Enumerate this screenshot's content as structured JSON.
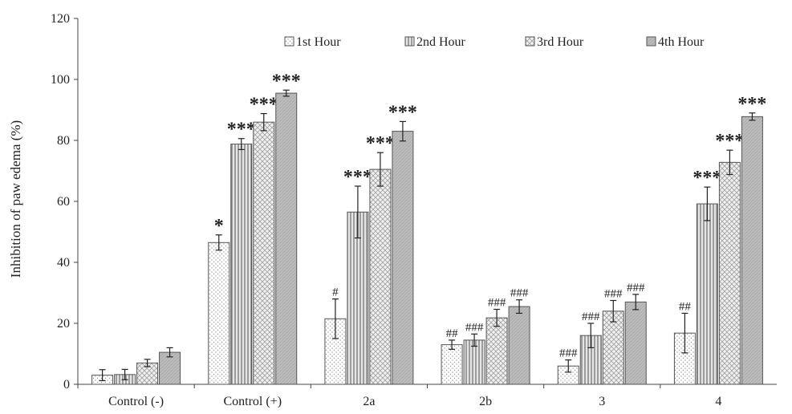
{
  "chart_data": {
    "type": "bar",
    "title": "",
    "xlabel": "",
    "ylabel": "Inhibition of paw edema (%)",
    "ylim": [
      0,
      120
    ],
    "yticks": [
      0,
      20,
      40,
      60,
      80,
      100,
      120
    ],
    "grid": false,
    "legend_position": "top",
    "categories": [
      "Control (-)",
      "Control (+)",
      "2a",
      "2b",
      "3",
      "4"
    ],
    "series": [
      {
        "name": "1st Hour",
        "values": [
          3.0,
          46.5,
          21.5,
          13.0,
          6.0,
          16.8
        ],
        "errors": [
          1.8,
          2.5,
          6.5,
          1.5,
          2.0,
          6.5
        ],
        "annotations": [
          "",
          "*",
          "#",
          "##",
          "###",
          "##"
        ]
      },
      {
        "name": "2nd Hour",
        "values": [
          3.2,
          78.8,
          56.5,
          14.5,
          16.0,
          59.2
        ],
        "errors": [
          1.7,
          1.8,
          8.5,
          2.0,
          4.0,
          5.5
        ],
        "annotations": [
          "",
          "***",
          "***",
          "###",
          "###",
          "***"
        ]
      },
      {
        "name": "3rd Hour",
        "values": [
          7.0,
          86.0,
          70.5,
          21.8,
          24.0,
          72.8
        ],
        "errors": [
          1.2,
          2.8,
          5.5,
          2.8,
          3.5,
          4.0
        ],
        "annotations": [
          "",
          "***",
          "***",
          "###",
          "###",
          "***"
        ]
      },
      {
        "name": "4th Hour",
        "values": [
          10.5,
          95.5,
          83.0,
          25.5,
          27.0,
          87.8
        ],
        "errors": [
          1.5,
          1.0,
          3.2,
          2.2,
          2.5,
          1.2
        ],
        "annotations": [
          "",
          "***",
          "***",
          "###",
          "###",
          "***"
        ]
      }
    ]
  }
}
